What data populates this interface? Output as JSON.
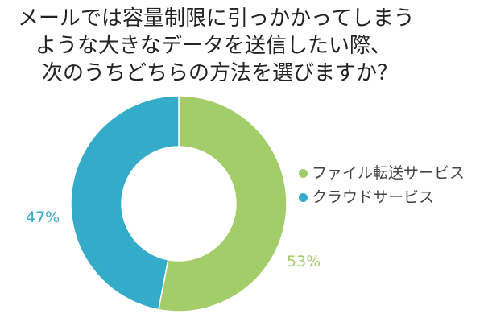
{
  "chart_data": {
    "type": "pie",
    "title_lines": [
      "メールでは容量制限に引っかかってしまう",
      "ような大きなデータを送信したい際、",
      "次のうちどちらの方法を選びますか？"
    ],
    "categories": [
      "ファイル転送サービス",
      "クラウドサービス"
    ],
    "values": [
      53,
      47
    ],
    "value_labels": [
      "53%",
      "47%"
    ],
    "colors": [
      "#a3cd69",
      "#33abc9"
    ],
    "legend_position": "right",
    "start_angle": "top, clockwise",
    "donut": true
  }
}
